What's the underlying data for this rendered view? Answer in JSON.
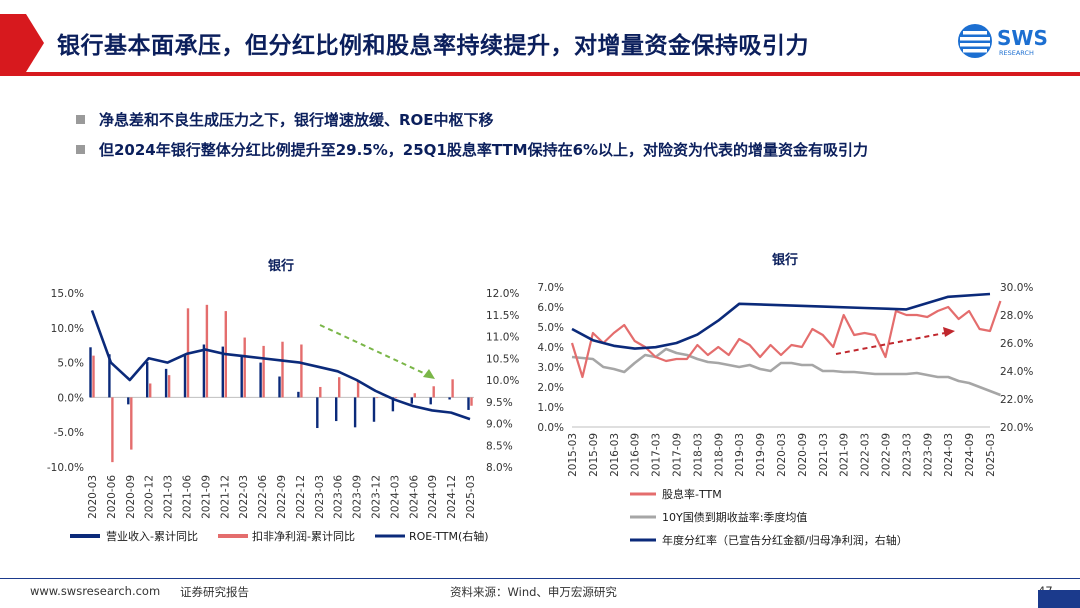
{
  "header": {
    "title": "银行基本面承压，但分红比例和股息率持续提升，对增量资金保持吸引力",
    "logo_text": "SWS",
    "logo_subtext": "RESEARCH"
  },
  "bullets": [
    "净息差和不良生成压力之下，银行增速放缓、ROE中枢下移",
    "但2024年银行整体分红比例提升至29.5%，25Q1股息率TTM保持在6%以上，对险资为代表的增量资金有吸引力"
  ],
  "colors": {
    "navy": "#0b2a7a",
    "red_bar": "#e46d6d",
    "gray_line": "#a6a6a6",
    "green_arrow": "#7ab648",
    "red_arrow": "#c0272d",
    "brand_red": "#d7191e",
    "title_navy": "#0b1f5c"
  },
  "chart_data": [
    {
      "type": "bar",
      "title": "银行",
      "categories": [
        "2020-03",
        "2020-06",
        "2020-09",
        "2020-12",
        "2021-03",
        "2021-06",
        "2021-09",
        "2021-12",
        "2022-03",
        "2022-06",
        "2022-09",
        "2022-12",
        "2023-03",
        "2023-06",
        "2023-09",
        "2023-12",
        "2024-03",
        "2024-06",
        "2024-09",
        "2024-12",
        "2025-03"
      ],
      "ylim": [
        -10,
        15
      ],
      "ylim_right": [
        8,
        12
      ],
      "y_ticks": [
        "15.0%",
        "10.0%",
        "5.0%",
        "0.0%",
        "-5.0%",
        "-10.0%"
      ],
      "y_ticks_right": [
        "12.0%",
        "11.5%",
        "11.0%",
        "10.5%",
        "10.0%",
        "9.5%",
        "9.0%",
        "8.5%",
        "8.0%"
      ],
      "series": [
        {
          "name": "营业收入-累计同比",
          "kind": "bar",
          "axis": "left",
          "values": [
            7.2,
            6.2,
            -1.0,
            5.1,
            4.1,
            6.1,
            7.6,
            7.3,
            6.0,
            5.0,
            3.0,
            0.8,
            -4.4,
            -3.4,
            -4.3,
            -3.5,
            -2.0,
            -0.9,
            -1.0,
            -0.3,
            -1.8
          ]
        },
        {
          "name": "扣非净利润-累计同比",
          "kind": "bar",
          "axis": "left",
          "values": [
            6.0,
            -9.3,
            -7.5,
            2.0,
            3.2,
            12.8,
            13.3,
            12.4,
            8.6,
            7.4,
            8.0,
            7.6,
            1.5,
            2.9,
            2.5,
            -0.1,
            -0.1,
            0.6,
            1.6,
            2.6,
            -1.2
          ]
        },
        {
          "name": "ROE-TTM(右轴)",
          "kind": "line",
          "axis": "right",
          "values": [
            11.6,
            10.4,
            10.0,
            10.5,
            10.4,
            10.6,
            10.7,
            10.6,
            10.55,
            10.5,
            10.45,
            10.4,
            10.3,
            10.2,
            10.0,
            9.75,
            9.55,
            9.4,
            9.3,
            9.25,
            9.1
          ]
        }
      ]
    },
    {
      "type": "line",
      "title": "银行",
      "x": [
        "2015-03",
        "2015-09",
        "2016-03",
        "2016-09",
        "2017-03",
        "2017-09",
        "2018-03",
        "2018-09",
        "2019-03",
        "2019-09",
        "2020-03",
        "2020-09",
        "2021-03",
        "2021-09",
        "2022-03",
        "2022-09",
        "2023-03",
        "2023-09",
        "2024-03",
        "2024-09",
        "2025-03"
      ],
      "ylim": [
        0,
        7
      ],
      "ylim_right": [
        20,
        30
      ],
      "y_ticks": [
        "7.0%",
        "6.0%",
        "5.0%",
        "4.0%",
        "3.0%",
        "2.0%",
        "1.0%",
        "0.0%"
      ],
      "y_ticks_right": [
        "30.0%",
        "28.0%",
        "26.0%",
        "24.0%",
        "22.0%",
        "20.0%"
      ],
      "series": [
        {
          "name": "股息率-TTM",
          "axis": "left",
          "values": [
            [
              0,
              4.2
            ],
            [
              0.5,
              2.5
            ],
            [
              1,
              4.7
            ],
            [
              1.5,
              4.2
            ],
            [
              2,
              4.7
            ],
            [
              2.5,
              5.1
            ],
            [
              3,
              4.3
            ],
            [
              3.5,
              4.0
            ],
            [
              4,
              3.5
            ],
            [
              4.5,
              3.3
            ],
            [
              5,
              3.4
            ],
            [
              5.5,
              3.4
            ],
            [
              6,
              4.1
            ],
            [
              6.5,
              3.6
            ],
            [
              7,
              4.0
            ],
            [
              7.5,
              3.6
            ],
            [
              8,
              4.4
            ],
            [
              8.5,
              4.1
            ],
            [
              9,
              3.5
            ],
            [
              9.5,
              4.1
            ],
            [
              10,
              3.6
            ],
            [
              10.5,
              4.1
            ],
            [
              11,
              4.0
            ],
            [
              11.5,
              4.9
            ],
            [
              12,
              4.6
            ],
            [
              12.5,
              4.0
            ],
            [
              13,
              5.6
            ],
            [
              13.5,
              4.6
            ],
            [
              14,
              4.7
            ],
            [
              14.5,
              4.6
            ],
            [
              15,
              3.5
            ],
            [
              15.5,
              5.8
            ],
            [
              16,
              5.6
            ],
            [
              16.5,
              5.6
            ],
            [
              17,
              5.5
            ],
            [
              17.5,
              5.8
            ],
            [
              18,
              6.0
            ],
            [
              18.5,
              5.4
            ],
            [
              19,
              5.8
            ],
            [
              19.5,
              4.9
            ],
            [
              20,
              4.8
            ],
            [
              20.5,
              6.3
            ]
          ]
        },
        {
          "name": "10Y国债到期收益率:季度均值",
          "axis": "left",
          "values": [
            [
              0,
              3.5
            ],
            [
              1,
              3.4
            ],
            [
              1.5,
              3.0
            ],
            [
              2,
              2.9
            ],
            [
              2.5,
              2.75
            ],
            [
              3,
              3.2
            ],
            [
              3.5,
              3.6
            ],
            [
              4,
              3.5
            ],
            [
              4.5,
              3.9
            ],
            [
              5,
              3.7
            ],
            [
              5.5,
              3.6
            ],
            [
              6,
              3.4
            ],
            [
              6.5,
              3.25
            ],
            [
              7,
              3.2
            ],
            [
              7.5,
              3.1
            ],
            [
              8,
              3.0
            ],
            [
              8.5,
              3.1
            ],
            [
              9,
              2.9
            ],
            [
              9.5,
              2.8
            ],
            [
              10,
              3.2
            ],
            [
              10.5,
              3.2
            ],
            [
              11,
              3.1
            ],
            [
              11.5,
              3.1
            ],
            [
              12,
              2.8
            ],
            [
              12.5,
              2.8
            ],
            [
              13,
              2.75
            ],
            [
              13.5,
              2.75
            ],
            [
              14,
              2.7
            ],
            [
              14.5,
              2.65
            ],
            [
              15,
              2.65
            ],
            [
              16,
              2.65
            ],
            [
              16.5,
              2.7
            ],
            [
              17,
              2.6
            ],
            [
              17.5,
              2.5
            ],
            [
              18,
              2.5
            ],
            [
              18.5,
              2.3
            ],
            [
              19,
              2.2
            ],
            [
              19.5,
              2.0
            ],
            [
              20,
              1.8
            ],
            [
              20.5,
              1.6
            ]
          ]
        },
        {
          "name": "年度分红率（已宣告分红金额/归母净利润，右轴）",
          "axis": "right",
          "values": [
            [
              0,
              27.0
            ],
            [
              1,
              26.2
            ],
            [
              2,
              25.8
            ],
            [
              3,
              25.6
            ],
            [
              4,
              25.7
            ],
            [
              5,
              26.0
            ],
            [
              6,
              26.6
            ],
            [
              7,
              27.6
            ],
            [
              8,
              28.8
            ],
            [
              10,
              28.7
            ],
            [
              12,
              28.6
            ],
            [
              14,
              28.5
            ],
            [
              16,
              28.4
            ],
            [
              18,
              29.3
            ],
            [
              20,
              29.5
            ]
          ]
        }
      ]
    }
  ],
  "footer": {
    "website": "www.swsresearch.com",
    "label": "证券研究报告",
    "source": "资料来源：Wind、申万宏源研究",
    "page": "47"
  }
}
